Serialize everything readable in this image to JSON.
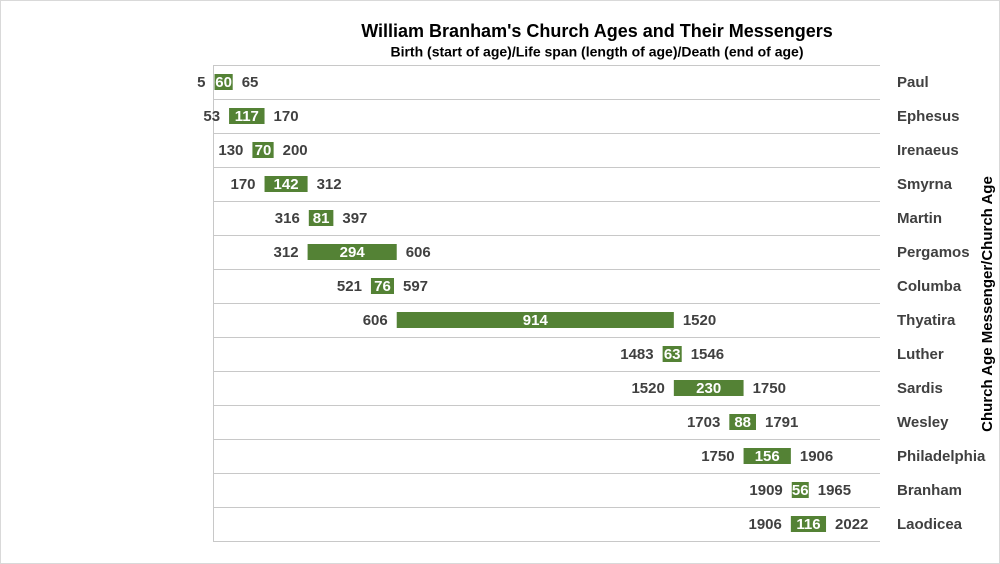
{
  "chart_data": {
    "type": "range-bar",
    "title": "William Branham's Church Ages and Their Messengers",
    "subtitle": "Birth (start of age)/Life span (length of age)/Death (end of age)",
    "y_label": "Church Age Messenger/Church Age",
    "categories": [
      "Paul",
      "Ephesus",
      "Irenaeus",
      "Smyrna",
      "Martin",
      "Pergamos",
      "Columba",
      "Thyatira",
      "Luther",
      "Sardis",
      "Wesley",
      "Philadelphia",
      "Branham",
      "Laodicea"
    ],
    "starts": [
      5,
      53,
      130,
      170,
      316,
      312,
      521,
      606,
      1483,
      1520,
      1703,
      1750,
      1909,
      1906
    ],
    "values": [
      60,
      117,
      70,
      142,
      81,
      294,
      76,
      914,
      63,
      230,
      88,
      156,
      56,
      116
    ],
    "ends": [
      65,
      170,
      200,
      312,
      397,
      606,
      597,
      1520,
      1546,
      1750,
      1791,
      1906,
      1965,
      2022
    ],
    "color": "#548235",
    "xlim": [
      0,
      2200
    ],
    "grid": true
  }
}
